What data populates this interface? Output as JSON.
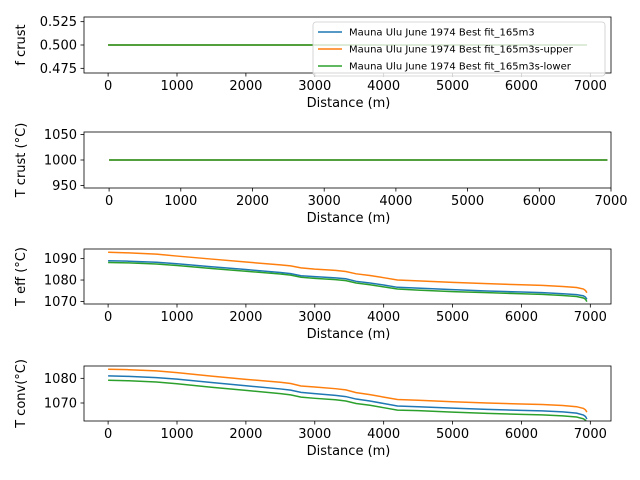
{
  "chart_data": [
    {
      "type": "line",
      "id": "p0",
      "xlabel": "Distance (m)",
      "ylabel": "f crust",
      "xlim": [
        -350,
        7300
      ],
      "ylim": [
        0.47,
        0.53
      ],
      "xticks": [
        0,
        1000,
        2000,
        3000,
        4000,
        5000,
        6000,
        7000
      ],
      "yticks": [
        0.475,
        0.5,
        0.525
      ],
      "ytick_labels": [
        "0.475",
        "0.500",
        "0.525"
      ],
      "legend": {
        "position": "upper right",
        "entries": [
          "Mauna Ulu June 1974 Best fit_165m3",
          "Mauna Ulu June 1974 Best fit_165m3s-upper",
          "Mauna Ulu June 1974 Best fit_165m3s-lower"
        ]
      },
      "series": [
        {
          "color": "#1f77b4",
          "x": [
            0,
            6950
          ],
          "y": [
            0.5,
            0.5
          ]
        },
        {
          "color": "#ff7f0e",
          "x": [
            0,
            6950
          ],
          "y": [
            0.5,
            0.5
          ]
        },
        {
          "color": "#2ca02c",
          "x": [
            0,
            6950
          ],
          "y": [
            0.5,
            0.5
          ]
        }
      ]
    },
    {
      "type": "line",
      "id": "p1",
      "xlabel": "Distance (m)",
      "ylabel": "T crust (°C)",
      "xlim": [
        -350,
        7000
      ],
      "ylim": [
        945,
        1055
      ],
      "xticks": [
        0,
        1000,
        2000,
        3000,
        4000,
        5000,
        6000,
        7000
      ],
      "yticks": [
        950,
        1000,
        1050
      ],
      "ytick_labels": [
        "950",
        "1000",
        "1050"
      ],
      "series": [
        {
          "color": "#1f77b4",
          "x": [
            0,
            6950
          ],
          "y": [
            1000,
            1000
          ]
        },
        {
          "color": "#ff7f0e",
          "x": [
            0,
            6950
          ],
          "y": [
            1000,
            1000
          ]
        },
        {
          "color": "#2ca02c",
          "x": [
            0,
            6950
          ],
          "y": [
            1000,
            1000
          ]
        }
      ]
    },
    {
      "type": "line",
      "id": "p2",
      "xlabel": "Distance (m)",
      "ylabel": "T eff (°C)",
      "xlim": [
        -350,
        7300
      ],
      "ylim": [
        1068.8,
        1094.5
      ],
      "xticks": [
        0,
        1000,
        2000,
        3000,
        4000,
        5000,
        6000,
        7000
      ],
      "yticks": [
        1070,
        1080,
        1090
      ],
      "ytick_labels": [
        "1070",
        "1080",
        "1090"
      ],
      "series": [
        {
          "color": "#1f77b4",
          "x": [
            0,
            300,
            700,
            1000,
            1500,
            2000,
            2500,
            2650,
            2800,
            3000,
            3300,
            3450,
            3600,
            3800,
            4000,
            4200,
            4500,
            5000,
            5500,
            6000,
            6300,
            6600,
            6800,
            6900,
            6930,
            6950
          ],
          "y": [
            1089.0,
            1088.8,
            1088.3,
            1087.6,
            1086.2,
            1084.9,
            1083.5,
            1083.0,
            1082.0,
            1081.6,
            1081.0,
            1080.6,
            1079.4,
            1078.6,
            1077.7,
            1076.6,
            1076.2,
            1075.5,
            1074.9,
            1074.4,
            1074.1,
            1073.6,
            1073.2,
            1072.6,
            1072.0,
            1071.0
          ]
        },
        {
          "color": "#ff7f0e",
          "x": [
            0,
            300,
            700,
            1000,
            1500,
            2000,
            2500,
            2650,
            2800,
            3000,
            3300,
            3450,
            3600,
            3800,
            4000,
            4200,
            4500,
            5000,
            5500,
            6000,
            6300,
            6600,
            6800,
            6900,
            6930,
            6950
          ],
          "y": [
            1093.0,
            1092.7,
            1092.1,
            1091.2,
            1089.8,
            1088.4,
            1087.1,
            1086.6,
            1085.7,
            1085.1,
            1084.5,
            1084.0,
            1082.9,
            1082.1,
            1081.1,
            1080.0,
            1079.6,
            1078.9,
            1078.3,
            1077.8,
            1077.5,
            1077.0,
            1076.5,
            1075.8,
            1075.1,
            1074.1
          ]
        },
        {
          "color": "#2ca02c",
          "x": [
            0,
            300,
            700,
            1000,
            1500,
            2000,
            2500,
            2650,
            2800,
            3000,
            3300,
            3450,
            3600,
            3800,
            4000,
            4200,
            4500,
            5000,
            5500,
            6000,
            6300,
            6600,
            6800,
            6900,
            6930,
            6950
          ],
          "y": [
            1088.2,
            1088.0,
            1087.5,
            1086.8,
            1085.4,
            1084.1,
            1082.8,
            1082.3,
            1081.3,
            1080.8,
            1080.2,
            1079.7,
            1078.6,
            1077.8,
            1076.8,
            1075.8,
            1075.3,
            1074.6,
            1074.1,
            1073.6,
            1073.3,
            1072.8,
            1072.3,
            1071.6,
            1071.0,
            1069.9
          ]
        }
      ]
    },
    {
      "type": "line",
      "id": "p3",
      "xlabel": "Distance (m)",
      "ylabel": "T conv(°C)",
      "xlim": [
        -350,
        7300
      ],
      "ylim": [
        1062.7,
        1085.0
      ],
      "xticks": [
        0,
        1000,
        2000,
        3000,
        4000,
        5000,
        6000,
        7000
      ],
      "yticks": [
        1070,
        1080
      ],
      "ytick_labels": [
        "1070",
        "1080"
      ],
      "series": [
        {
          "color": "#1f77b4",
          "x": [
            0,
            300,
            700,
            1000,
            1500,
            2000,
            2500,
            2650,
            2800,
            3000,
            3300,
            3450,
            3600,
            3800,
            4000,
            4200,
            4500,
            5000,
            5500,
            6000,
            6300,
            6600,
            6800,
            6900,
            6930,
            6950
          ],
          "y": [
            1081.0,
            1080.8,
            1080.3,
            1079.7,
            1078.3,
            1077.0,
            1075.7,
            1075.2,
            1074.3,
            1073.8,
            1073.1,
            1072.6,
            1071.6,
            1070.8,
            1069.8,
            1068.8,
            1068.5,
            1067.9,
            1067.4,
            1067.0,
            1066.8,
            1066.4,
            1065.9,
            1065.1,
            1064.5,
            1063.5
          ]
        },
        {
          "color": "#ff7f0e",
          "x": [
            0,
            300,
            700,
            1000,
            1500,
            2000,
            2500,
            2650,
            2800,
            3000,
            3300,
            3450,
            3600,
            3800,
            4000,
            4200,
            4500,
            5000,
            5500,
            6000,
            6300,
            6600,
            6800,
            6900,
            6930,
            6950
          ],
          "y": [
            1083.7,
            1083.5,
            1083.0,
            1082.3,
            1080.9,
            1079.6,
            1078.4,
            1077.9,
            1076.9,
            1076.5,
            1075.8,
            1075.3,
            1074.2,
            1073.4,
            1072.4,
            1071.4,
            1071.1,
            1070.5,
            1070.0,
            1069.6,
            1069.4,
            1069.0,
            1068.5,
            1067.8,
            1067.2,
            1066.3
          ]
        },
        {
          "color": "#2ca02c",
          "x": [
            0,
            300,
            700,
            1000,
            1500,
            2000,
            2500,
            2650,
            2800,
            3000,
            3300,
            3450,
            3600,
            3800,
            4000,
            4200,
            4500,
            5000,
            5500,
            6000,
            6300,
            6600,
            6800,
            6900,
            6930,
            6950
          ],
          "y": [
            1079.2,
            1079.0,
            1078.5,
            1077.8,
            1076.4,
            1075.1,
            1073.8,
            1073.3,
            1072.4,
            1071.9,
            1071.3,
            1070.8,
            1069.8,
            1069.1,
            1068.1,
            1067.1,
            1066.9,
            1066.3,
            1065.8,
            1065.4,
            1065.2,
            1064.8,
            1064.3,
            1063.6,
            1063.0,
            1062.0
          ]
        }
      ]
    }
  ]
}
